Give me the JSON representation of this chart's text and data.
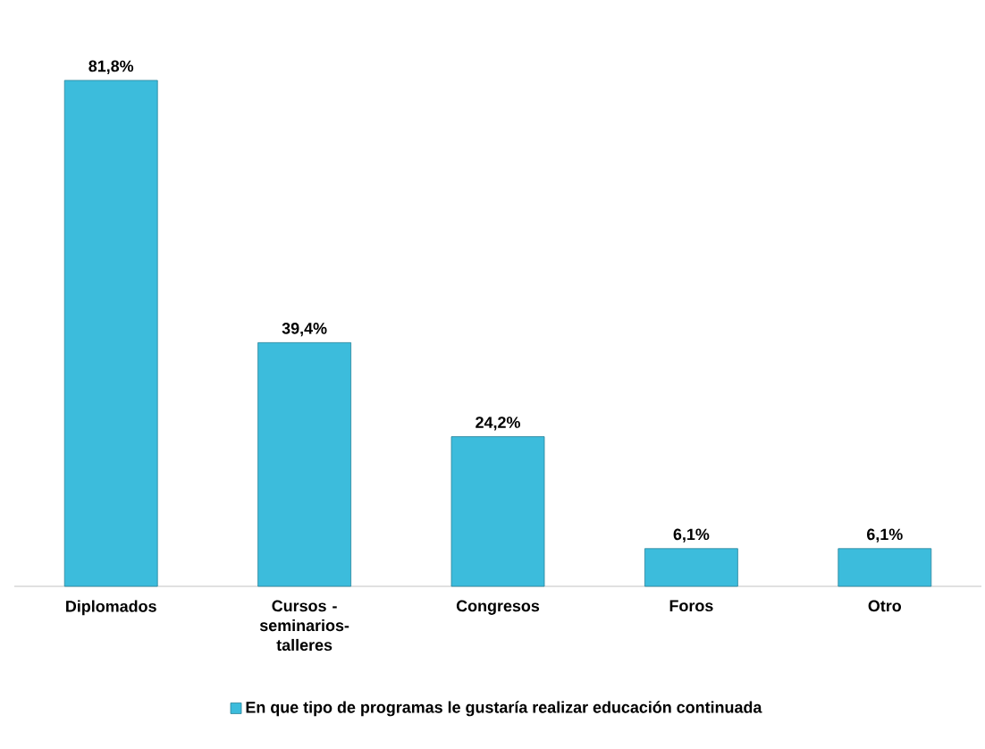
{
  "chart_data": {
    "type": "bar",
    "categories": [
      "Diplomados",
      "Cursos -seminarios- talleres",
      "Congresos",
      "Foros",
      "Otro"
    ],
    "series": [
      {
        "name": "En que tipo de programas le gustaría realizar educación continuada",
        "color": "#3cbcdc",
        "values": [
          81.8,
          39.4,
          24.2,
          6.1,
          6.1
        ],
        "value_labels": [
          "81,8%",
          "39,4%",
          "24,2%",
          "6,1%",
          "6,1%"
        ]
      }
    ],
    "legend": "bottom"
  }
}
